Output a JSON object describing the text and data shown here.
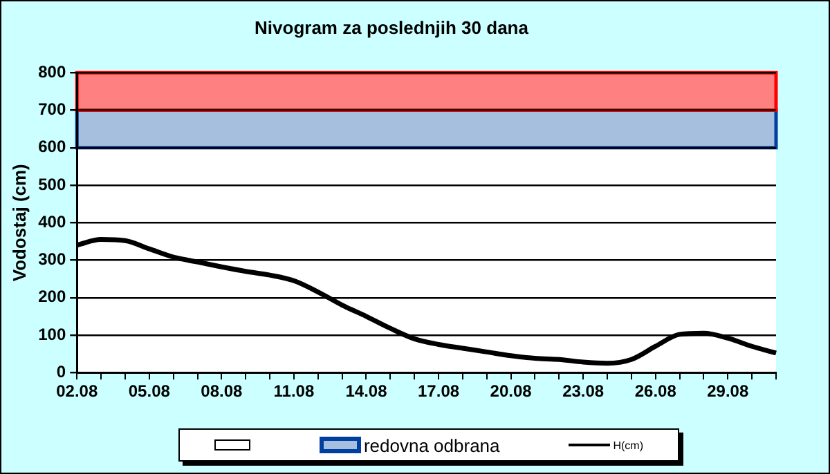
{
  "chart_data": {
    "type": "line",
    "title": "Nivogram za poslednjih 30 dana",
    "ylabel": "Vodostaj (cm)",
    "categories": [
      "02.08",
      null,
      null,
      "05.08",
      null,
      null,
      "08.08",
      null,
      null,
      "11.08",
      null,
      null,
      "14.08",
      null,
      null,
      "17.08",
      null,
      null,
      "20.08",
      null,
      null,
      "23.08",
      null,
      null,
      "26.08",
      null,
      null,
      "29.08",
      null,
      null
    ],
    "series": [
      {
        "name": "H(cm)",
        "color": "#000000",
        "values": [
          340,
          355,
          352,
          330,
          308,
          295,
          282,
          270,
          260,
          245,
          215,
          180,
          150,
          118,
          90,
          75,
          65,
          55,
          45,
          38,
          35,
          28,
          25,
          35,
          70,
          102,
          105,
          92,
          70,
          52
        ]
      }
    ],
    "ylim": [
      0,
      800
    ],
    "yticks": [
      0,
      100,
      200,
      300,
      400,
      500,
      600,
      700,
      800
    ],
    "grid": "y",
    "legend": "bottom",
    "marker": "none",
    "line_style": "solid",
    "bands": [
      {
        "axis": "y",
        "from": 0,
        "to": 600,
        "color": "#ffffff"
      },
      {
        "axis": "y",
        "from": 600,
        "to": 700,
        "color": "#a7bfdf",
        "label": "redovna odbrana"
      },
      {
        "axis": "y",
        "from": 700,
        "to": 800,
        "color": "#ff8080"
      }
    ]
  }
}
